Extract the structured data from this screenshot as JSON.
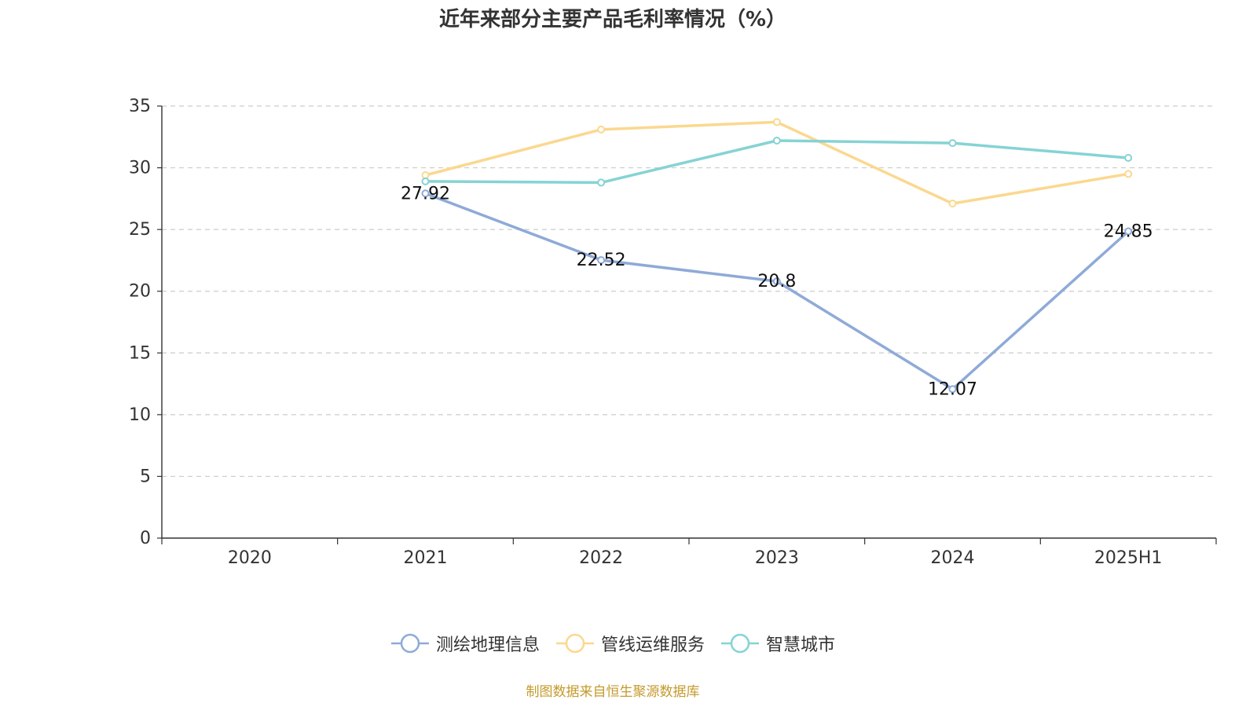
{
  "chart_data": {
    "type": "line",
    "title": "近年来部分主要产品毛利率情况（%）",
    "categories": [
      "2020",
      "2021",
      "2022",
      "2023",
      "2024",
      "2025H1"
    ],
    "y_ticks": [
      "0",
      "5",
      "10",
      "15",
      "20",
      "25",
      "30",
      "35"
    ],
    "ylim": [
      0,
      35
    ],
    "grid": true,
    "legend_position": "bottom",
    "series": [
      {
        "name": "测绘地理信息",
        "color": "#8eaad8",
        "values": [
          null,
          27.92,
          22.52,
          20.8,
          12.07,
          24.85
        ],
        "labels": [
          "",
          "27.92",
          "22.52",
          "20.8",
          "12.07",
          "24.85"
        ]
      },
      {
        "name": "管线运维服务",
        "color": "#fbd88f",
        "values": [
          null,
          29.4,
          33.1,
          33.7,
          27.1,
          29.5
        ]
      },
      {
        "name": "智慧城市",
        "color": "#86d3d4",
        "values": [
          null,
          28.9,
          28.8,
          32.2,
          32.0,
          30.8
        ]
      }
    ]
  },
  "source": "制图数据来自恒生聚源数据库"
}
